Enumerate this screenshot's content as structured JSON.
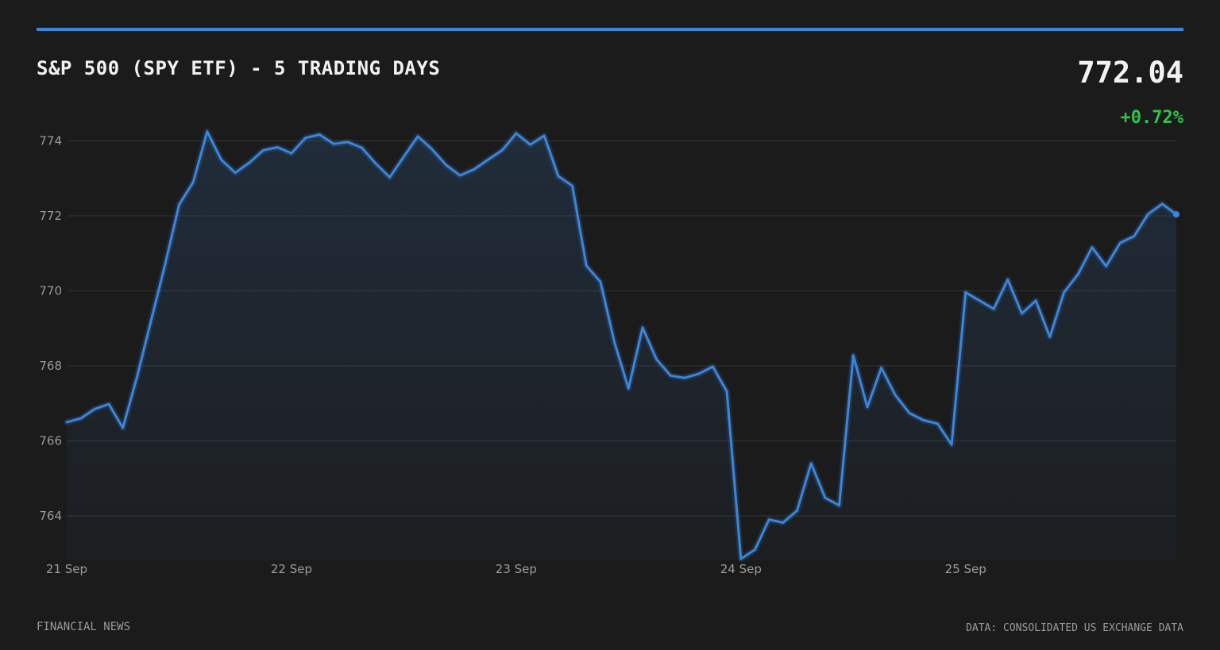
{
  "header": {
    "title": "S&P 500 (SPY ETF) - 5 TRADING DAYS",
    "price": "772.04",
    "change": "+0.72%"
  },
  "footer": {
    "source_left": "FINANCIAL NEWS",
    "source_right": "DATA: CONSOLIDATED US EXCHANGE DATA"
  },
  "colors": {
    "background": "#1b1b1b",
    "accent": "#3b86dd",
    "positive": "#2fc44a",
    "grid": "#333333",
    "tick_text": "#9a9a9a"
  },
  "chart_data": {
    "type": "area",
    "title": "S&P 500 (SPY ETF) - 5 TRADING DAYS",
    "xlabel": "",
    "ylabel": "",
    "ylim": [
      763,
      774.5
    ],
    "yticks": [
      764,
      766,
      768,
      770,
      772,
      774
    ],
    "xticks": [
      "21 Sep",
      "22 Sep",
      "23 Sep",
      "24 Sep",
      "25 Sep"
    ],
    "grid": "horizontal",
    "legend": "none",
    "series": [
      {
        "values": [
          766.5,
          766.6,
          766.85,
          766.98,
          766.35,
          767.7,
          769.2,
          770.7,
          772.3,
          772.9,
          774.25,
          773.5,
          773.15,
          773.42,
          773.75,
          773.83,
          773.67,
          774.08,
          774.17,
          773.92,
          773.97,
          773.82,
          773.4,
          773.03,
          773.58,
          774.12,
          773.78,
          773.36,
          773.08,
          773.24,
          773.5,
          773.75,
          774.2,
          773.9,
          774.14,
          773.06,
          772.8,
          770.67,
          770.24,
          768.62,
          767.4,
          769.02,
          768.17,
          767.74,
          767.68,
          767.79,
          767.98,
          767.32,
          762.85,
          763.1,
          763.9,
          763.82,
          764.14,
          765.4,
          764.48,
          764.28,
          768.28,
          766.9,
          767.95,
          767.22,
          766.74,
          766.55,
          766.46,
          765.9,
          769.96,
          769.74,
          769.52,
          770.3,
          769.4,
          769.74,
          768.77,
          769.96,
          770.44,
          771.16,
          770.66,
          771.28,
          771.46,
          772.05,
          772.32,
          772.04
        ]
      }
    ]
  }
}
